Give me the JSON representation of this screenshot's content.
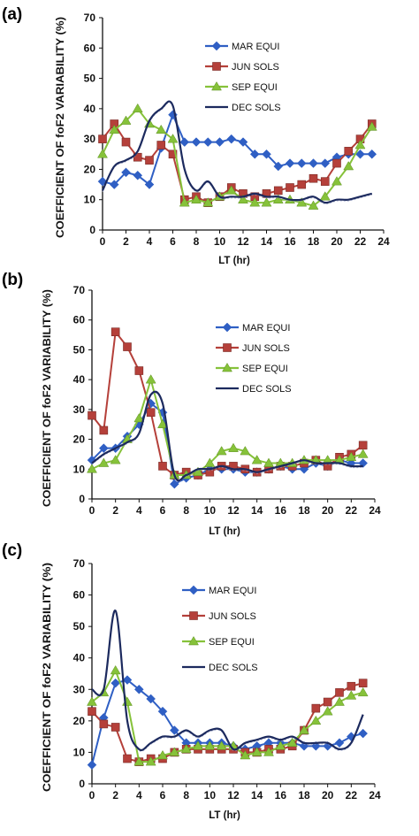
{
  "colors": {
    "MAR EQUI": "#2f5fc4",
    "JUN SOLS": "#b5403a",
    "SEP EQUI": "#86c23a",
    "DEC SOLS": "#1c2a5e",
    "axis": "#111111",
    "extra_trace": "#9aa3c9"
  },
  "chart_data": [
    {
      "panel": "(a)",
      "type": "line",
      "xlabel": "LT (hr)",
      "ylabel": "COEFFICIENT OF foF2  VARIABILITY (%)",
      "xlim": [
        0,
        24
      ],
      "ylim": [
        0,
        70
      ],
      "xticks": [
        0,
        2,
        4,
        6,
        8,
        10,
        12,
        14,
        16,
        18,
        20,
        22,
        24
      ],
      "yticks": [
        0,
        10,
        20,
        30,
        40,
        50,
        60,
        70
      ],
      "grid": false,
      "legend_placement": "top-right",
      "series": [
        {
          "name": "MAR EQUI",
          "marker": "diamond",
          "x": [
            0,
            1,
            2,
            3,
            4,
            5,
            6,
            7,
            8,
            9,
            10,
            11,
            12,
            13,
            14,
            15,
            16,
            17,
            18,
            19,
            20,
            21,
            22,
            23
          ],
          "values": [
            16,
            15,
            19,
            18,
            15,
            27,
            38,
            29,
            29,
            29,
            29,
            30,
            29,
            25,
            25,
            21,
            22,
            22,
            22,
            22,
            24,
            25,
            25,
            25
          ]
        },
        {
          "name": "JUN SOLS",
          "marker": "square",
          "x": [
            0,
            1,
            2,
            3,
            4,
            5,
            6,
            7,
            8,
            9,
            10,
            11,
            12,
            13,
            14,
            15,
            16,
            17,
            18,
            19,
            20,
            21,
            22,
            23
          ],
          "values": [
            30,
            35,
            29,
            24,
            23,
            28,
            25,
            10,
            11,
            9,
            11,
            14,
            12,
            11,
            12,
            13,
            14,
            15,
            17,
            16,
            22,
            26,
            30,
            35
          ]
        },
        {
          "name": "SEP EQUI",
          "marker": "triangle",
          "x": [
            0,
            1,
            2,
            3,
            4,
            5,
            6,
            7,
            8,
            9,
            10,
            11,
            12,
            13,
            14,
            15,
            16,
            17,
            18,
            19,
            20,
            21,
            22,
            23
          ],
          "values": [
            25,
            33,
            36,
            40,
            35,
            33,
            30,
            9,
            10,
            9,
            11,
            13,
            10,
            9,
            9,
            10,
            10,
            9,
            8,
            11,
            16,
            21,
            28,
            34
          ]
        },
        {
          "name": "DEC SOLS",
          "marker": "none",
          "x": [
            0,
            1,
            2,
            3,
            4,
            5,
            6,
            7,
            8,
            9,
            10,
            11,
            12,
            13,
            14,
            15,
            16,
            17,
            18,
            19,
            20,
            21,
            22,
            23
          ],
          "values": [
            13,
            21,
            23,
            26,
            36,
            40,
            41,
            20,
            13,
            16,
            11,
            11,
            11,
            12,
            11,
            11,
            10,
            10,
            11,
            9,
            10,
            10,
            11,
            12
          ]
        }
      ]
    },
    {
      "panel": "(b)",
      "type": "line",
      "xlabel": "LT (hr)",
      "ylabel": "COEFFICIENT OF foF2  VARIABILITY (%)",
      "xlim": [
        0,
        24
      ],
      "ylim": [
        0,
        70
      ],
      "xticks": [
        0,
        2,
        4,
        6,
        8,
        10,
        12,
        14,
        16,
        18,
        20,
        22,
        24
      ],
      "yticks": [
        0,
        10,
        20,
        30,
        40,
        50,
        60,
        70
      ],
      "grid": false,
      "legend_placement": "top-right",
      "series": [
        {
          "name": "MAR EQUI",
          "marker": "diamond",
          "x": [
            0,
            1,
            2,
            3,
            4,
            5,
            6,
            7,
            8,
            9,
            10,
            11,
            12,
            13,
            14,
            15,
            16,
            17,
            18,
            19,
            20,
            21,
            22,
            23
          ],
          "values": [
            13,
            17,
            17,
            21,
            25,
            32,
            29,
            5,
            7,
            8,
            10,
            10,
            10,
            9,
            9,
            10,
            11,
            10,
            10,
            12,
            11,
            13,
            12,
            12
          ]
        },
        {
          "name": "JUN SOLS",
          "marker": "square",
          "x": [
            0,
            1,
            2,
            3,
            4,
            5,
            6,
            7,
            8,
            9,
            10,
            11,
            12,
            13,
            14,
            15,
            16,
            17,
            18,
            19,
            20,
            21,
            22,
            23
          ],
          "values": [
            28,
            23,
            56,
            51,
            43,
            29,
            11,
            8,
            9,
            8,
            9,
            11,
            11,
            10,
            9,
            10,
            11,
            11,
            12,
            13,
            11,
            14,
            15,
            18
          ]
        },
        {
          "name": "SEP EQUI",
          "marker": "triangle",
          "x": [
            0,
            1,
            2,
            3,
            4,
            5,
            6,
            7,
            8,
            9,
            10,
            11,
            12,
            13,
            14,
            15,
            16,
            17,
            18,
            19,
            20,
            21,
            22,
            23
          ],
          "values": [
            10,
            12,
            13,
            20,
            27,
            40,
            25,
            8,
            8,
            9,
            12,
            16,
            17,
            16,
            13,
            12,
            12,
            12,
            13,
            13,
            13,
            13,
            14,
            15
          ]
        },
        {
          "name": "DEC SOLS",
          "marker": "none",
          "x": [
            0,
            1,
            2,
            3,
            4,
            5,
            6,
            7,
            8,
            9,
            10,
            11,
            12,
            13,
            14,
            15,
            16,
            17,
            18,
            19,
            20,
            21,
            22,
            23
          ],
          "values": [
            12,
            15,
            17,
            19,
            22,
            35,
            32,
            8,
            8,
            10,
            10,
            11,
            10,
            10,
            9,
            10,
            11,
            12,
            13,
            12,
            12,
            12,
            11,
            11
          ]
        }
      ]
    },
    {
      "panel": "(c)",
      "type": "line",
      "xlabel": "LT (hr)",
      "ylabel": "COEFFICIENT OF foF2  VARIABILITY (%)",
      "xlim": [
        0,
        24
      ],
      "ylim": [
        0,
        70
      ],
      "xticks": [
        0,
        2,
        4,
        6,
        8,
        10,
        12,
        14,
        16,
        18,
        20,
        22,
        24
      ],
      "yticks": [
        0,
        10,
        20,
        30,
        40,
        50,
        60,
        70
      ],
      "grid": false,
      "legend_placement": "top-right",
      "series": [
        {
          "name": "MAR EQUI",
          "marker": "diamond",
          "x": [
            0,
            1,
            2,
            3,
            4,
            5,
            6,
            7,
            8,
            9,
            10,
            11,
            12,
            13,
            14,
            15,
            16,
            17,
            18,
            19,
            20,
            21,
            22,
            23
          ],
          "values": [
            6,
            21,
            32,
            33,
            30,
            27,
            23,
            17,
            13,
            13,
            13,
            13,
            12,
            11,
            12,
            13,
            13,
            13,
            12,
            12,
            12,
            13,
            15,
            16
          ]
        },
        {
          "name": "JUN SOLS",
          "marker": "square",
          "x": [
            0,
            1,
            2,
            3,
            4,
            5,
            6,
            7,
            8,
            9,
            10,
            11,
            12,
            13,
            14,
            15,
            16,
            17,
            18,
            19,
            20,
            21,
            22,
            23
          ],
          "values": [
            23,
            19,
            18,
            8,
            7,
            8,
            8,
            10,
            11,
            11,
            11,
            11,
            11,
            10,
            10,
            11,
            11,
            12,
            17,
            24,
            26,
            29,
            31,
            32
          ]
        },
        {
          "name": "SEP EQUI",
          "marker": "triangle",
          "x": [
            0,
            1,
            2,
            3,
            4,
            5,
            6,
            7,
            8,
            9,
            10,
            11,
            12,
            13,
            14,
            15,
            16,
            17,
            18,
            19,
            20,
            21,
            22,
            23
          ],
          "values": [
            26,
            29,
            36,
            26,
            7,
            7,
            9,
            10,
            11,
            12,
            12,
            12,
            12,
            9,
            10,
            10,
            12,
            13,
            17,
            20,
            23,
            26,
            28,
            29
          ]
        },
        {
          "name": "DEC SOLS",
          "marker": "none",
          "x": [
            0,
            1,
            2,
            3,
            4,
            5,
            6,
            7,
            8,
            9,
            10,
            11,
            12,
            13,
            14,
            15,
            16,
            17,
            18,
            19,
            20,
            21,
            22,
            23
          ],
          "values": [
            30,
            30,
            55,
            20,
            11,
            13,
            15,
            15,
            17,
            15,
            17,
            17,
            11,
            13,
            14,
            15,
            14,
            15,
            13,
            13,
            13,
            11,
            13,
            22
          ]
        }
      ]
    }
  ]
}
